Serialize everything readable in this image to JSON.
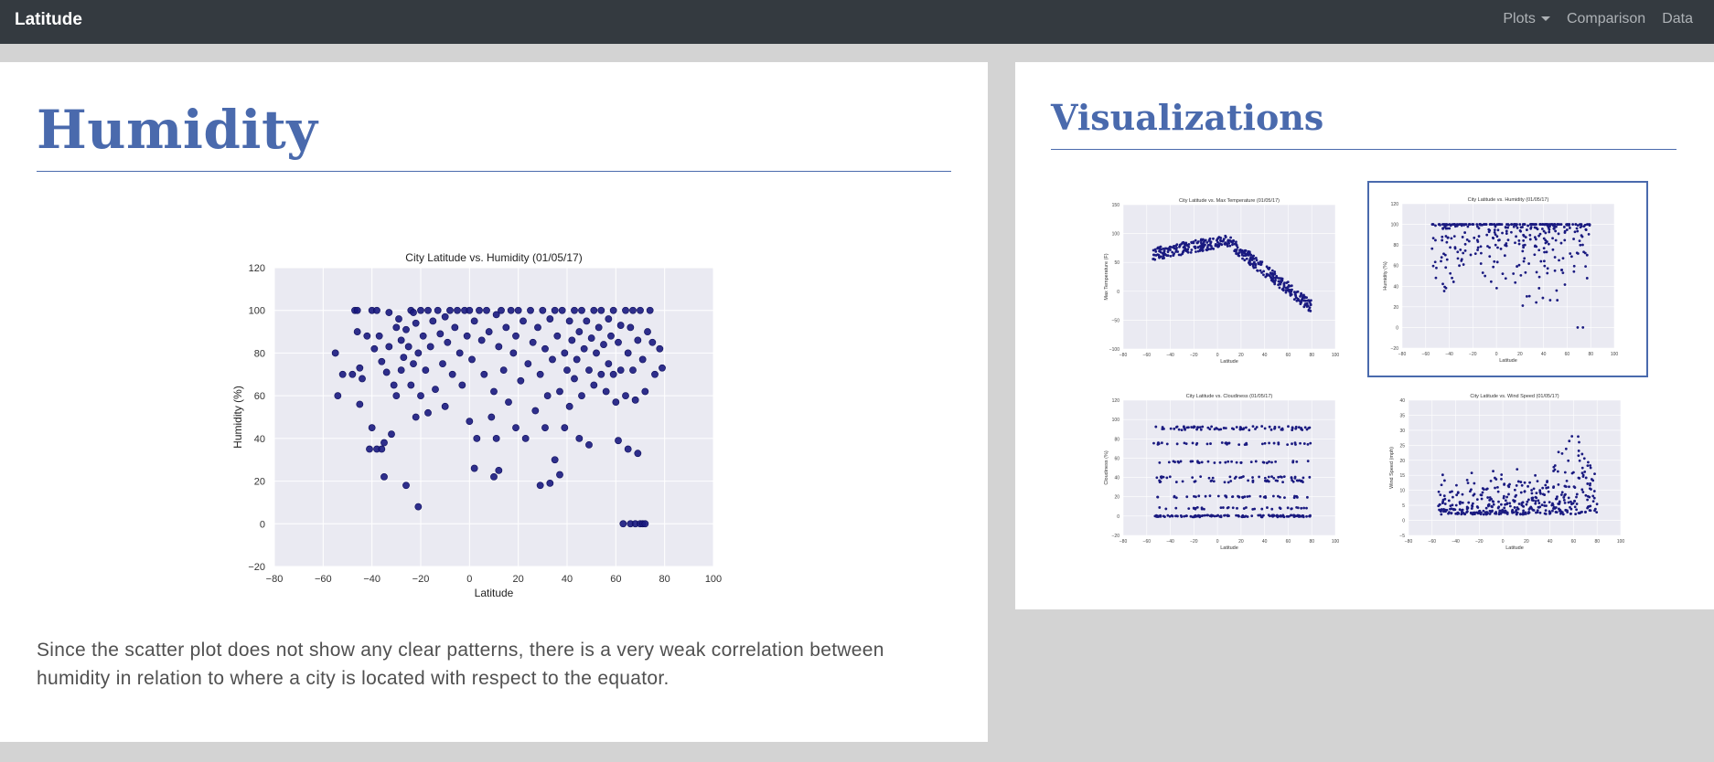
{
  "navbar": {
    "brand": "Latitude",
    "links": {
      "plots": "Plots",
      "comparison": "Comparison",
      "data": "Data"
    }
  },
  "main": {
    "title": "Humidity",
    "description": "Since the scatter plot does not show any clear patterns, there is a very weak correlation between humidity in relation to where a city is located with respect to the equator."
  },
  "sidebar": {
    "title": "Visualizations",
    "thumbnails": [
      {
        "title": "City Latitude vs. Max Temperature (01/05/17)",
        "xlabel": "Latitude",
        "ylabel": "Max Temperature (F)"
      },
      {
        "title": "City Latitude vs. Humidity (01/05/17)",
        "xlabel": "Latitude",
        "ylabel": "Humidity (%)"
      },
      {
        "title": "City Latitude vs. Cloudiness (01/05/17)",
        "xlabel": "Latitude",
        "ylabel": "Cloudiness (%)"
      },
      {
        "title": "City Latitude vs. Wind Speed (01/05/17)",
        "xlabel": "Latitude",
        "ylabel": "Wind Speed (mph)"
      }
    ]
  },
  "colors": {
    "accent": "#4a6aad",
    "navbar": "#343a40",
    "point": "#1a1a80",
    "plot_bg": "#eaeaf2"
  },
  "chart_data": [
    {
      "type": "scatter",
      "title": "City Latitude vs. Humidity (01/05/17)",
      "xlabel": "Latitude",
      "ylabel": "Humidity (%)",
      "xlim": [
        -80,
        100
      ],
      "ylim": [
        -20,
        120
      ],
      "xticks": [
        -80,
        -60,
        -40,
        -20,
        0,
        20,
        40,
        60,
        80,
        100
      ],
      "yticks": [
        -20,
        0,
        20,
        40,
        60,
        80,
        100,
        120
      ],
      "grid": true,
      "points": [
        [
          -55,
          80
        ],
        [
          -54,
          60
        ],
        [
          -52,
          70
        ],
        [
          -48,
          70
        ],
        [
          -47,
          100
        ],
        [
          -46,
          100
        ],
        [
          -46,
          90
        ],
        [
          -45,
          73
        ],
        [
          -45,
          56
        ],
        [
          -44,
          68
        ],
        [
          -42,
          88
        ],
        [
          -41,
          35
        ],
        [
          -40,
          100
        ],
        [
          -40,
          45
        ],
        [
          -39,
          82
        ],
        [
          -38,
          35
        ],
        [
          -38,
          100
        ],
        [
          -37,
          88
        ],
        [
          -36,
          76
        ],
        [
          -36,
          35
        ],
        [
          -35,
          38
        ],
        [
          -35,
          22
        ],
        [
          -34,
          71
        ],
        [
          -33,
          99
        ],
        [
          -33,
          83
        ],
        [
          -32,
          42
        ],
        [
          -31,
          65
        ],
        [
          -30,
          92
        ],
        [
          -30,
          60
        ],
        [
          -29,
          96
        ],
        [
          -28,
          86
        ],
        [
          -28,
          72
        ],
        [
          -27,
          78
        ],
        [
          -26,
          91
        ],
        [
          -26,
          18
        ],
        [
          -25,
          83
        ],
        [
          -24,
          100
        ],
        [
          -24,
          65
        ],
        [
          -23,
          99
        ],
        [
          -23,
          75
        ],
        [
          -22,
          94
        ],
        [
          -22,
          50
        ],
        [
          -21,
          80
        ],
        [
          -21,
          8
        ],
        [
          -20,
          100
        ],
        [
          -20,
          60
        ],
        [
          -19,
          88
        ],
        [
          -18,
          72
        ],
        [
          -17,
          100
        ],
        [
          -17,
          52
        ],
        [
          -16,
          83
        ],
        [
          -15,
          95
        ],
        [
          -14,
          63
        ],
        [
          -13,
          100
        ],
        [
          -12,
          89
        ],
        [
          -11,
          75
        ],
        [
          -10,
          97
        ],
        [
          -10,
          55
        ],
        [
          -9,
          85
        ],
        [
          -8,
          100
        ],
        [
          -7,
          70
        ],
        [
          -6,
          92
        ],
        [
          -5,
          100
        ],
        [
          -4,
          80
        ],
        [
          -3,
          65
        ],
        [
          -2,
          100
        ],
        [
          -1,
          88
        ],
        [
          0,
          100
        ],
        [
          0,
          48
        ],
        [
          1,
          77
        ],
        [
          2,
          95
        ],
        [
          2,
          26
        ],
        [
          3,
          40
        ],
        [
          4,
          100
        ],
        [
          5,
          86
        ],
        [
          6,
          70
        ],
        [
          7,
          100
        ],
        [
          8,
          90
        ],
        [
          9,
          50
        ],
        [
          10,
          62
        ],
        [
          10,
          22
        ],
        [
          11,
          98
        ],
        [
          11,
          40
        ],
        [
          12,
          83
        ],
        [
          12,
          25
        ],
        [
          13,
          100
        ],
        [
          14,
          72
        ],
        [
          15,
          92
        ],
        [
          16,
          57
        ],
        [
          17,
          100
        ],
        [
          18,
          80
        ],
        [
          19,
          45
        ],
        [
          19,
          88
        ],
        [
          20,
          100
        ],
        [
          21,
          67
        ],
        [
          22,
          95
        ],
        [
          23,
          40
        ],
        [
          24,
          75
        ],
        [
          25,
          100
        ],
        [
          26,
          85
        ],
        [
          27,
          53
        ],
        [
          28,
          92
        ],
        [
          29,
          70
        ],
        [
          29,
          18
        ],
        [
          30,
          100
        ],
        [
          31,
          82
        ],
        [
          31,
          45
        ],
        [
          32,
          60
        ],
        [
          33,
          96
        ],
        [
          33,
          19
        ],
        [
          34,
          77
        ],
        [
          35,
          30
        ],
        [
          35,
          100
        ],
        [
          36,
          88
        ],
        [
          37,
          62
        ],
        [
          37,
          23
        ],
        [
          38,
          100
        ],
        [
          39,
          80
        ],
        [
          39,
          45
        ],
        [
          40,
          72
        ],
        [
          41,
          95
        ],
        [
          41,
          55
        ],
        [
          42,
          86
        ],
        [
          43,
          100
        ],
        [
          43,
          68
        ],
        [
          44,
          77
        ],
        [
          45,
          90
        ],
        [
          45,
          40
        ],
        [
          46,
          100
        ],
        [
          46,
          60
        ],
        [
          47,
          82
        ],
        [
          48,
          95
        ],
        [
          49,
          72
        ],
        [
          49,
          37
        ],
        [
          50,
          87
        ],
        [
          51,
          100
        ],
        [
          51,
          65
        ],
        [
          52,
          80
        ],
        [
          53,
          92
        ],
        [
          54,
          70
        ],
        [
          54,
          100
        ],
        [
          55,
          84
        ],
        [
          56,
          62
        ],
        [
          57,
          96
        ],
        [
          57,
          75
        ],
        [
          58,
          88
        ],
        [
          59,
          70
        ],
        [
          59,
          100
        ],
        [
          60,
          57
        ],
        [
          61,
          85
        ],
        [
          61,
          39
        ],
        [
          62,
          93
        ],
        [
          62,
          72
        ],
        [
          63,
          0
        ],
        [
          64,
          100
        ],
        [
          64,
          60
        ],
        [
          65,
          80
        ],
        [
          65,
          35
        ],
        [
          66,
          92
        ],
        [
          66,
          0
        ],
        [
          67,
          72
        ],
        [
          67,
          100
        ],
        [
          68,
          0
        ],
        [
          68,
          58
        ],
        [
          69,
          86
        ],
        [
          69,
          33
        ],
        [
          70,
          0
        ],
        [
          70,
          100
        ],
        [
          71,
          77
        ],
        [
          71,
          0
        ],
        [
          72,
          0
        ],
        [
          72,
          62
        ],
        [
          73,
          90
        ],
        [
          74,
          100
        ],
        [
          75,
          85
        ],
        [
          76,
          70
        ],
        [
          78,
          82
        ],
        [
          79,
          73
        ]
      ]
    }
  ]
}
